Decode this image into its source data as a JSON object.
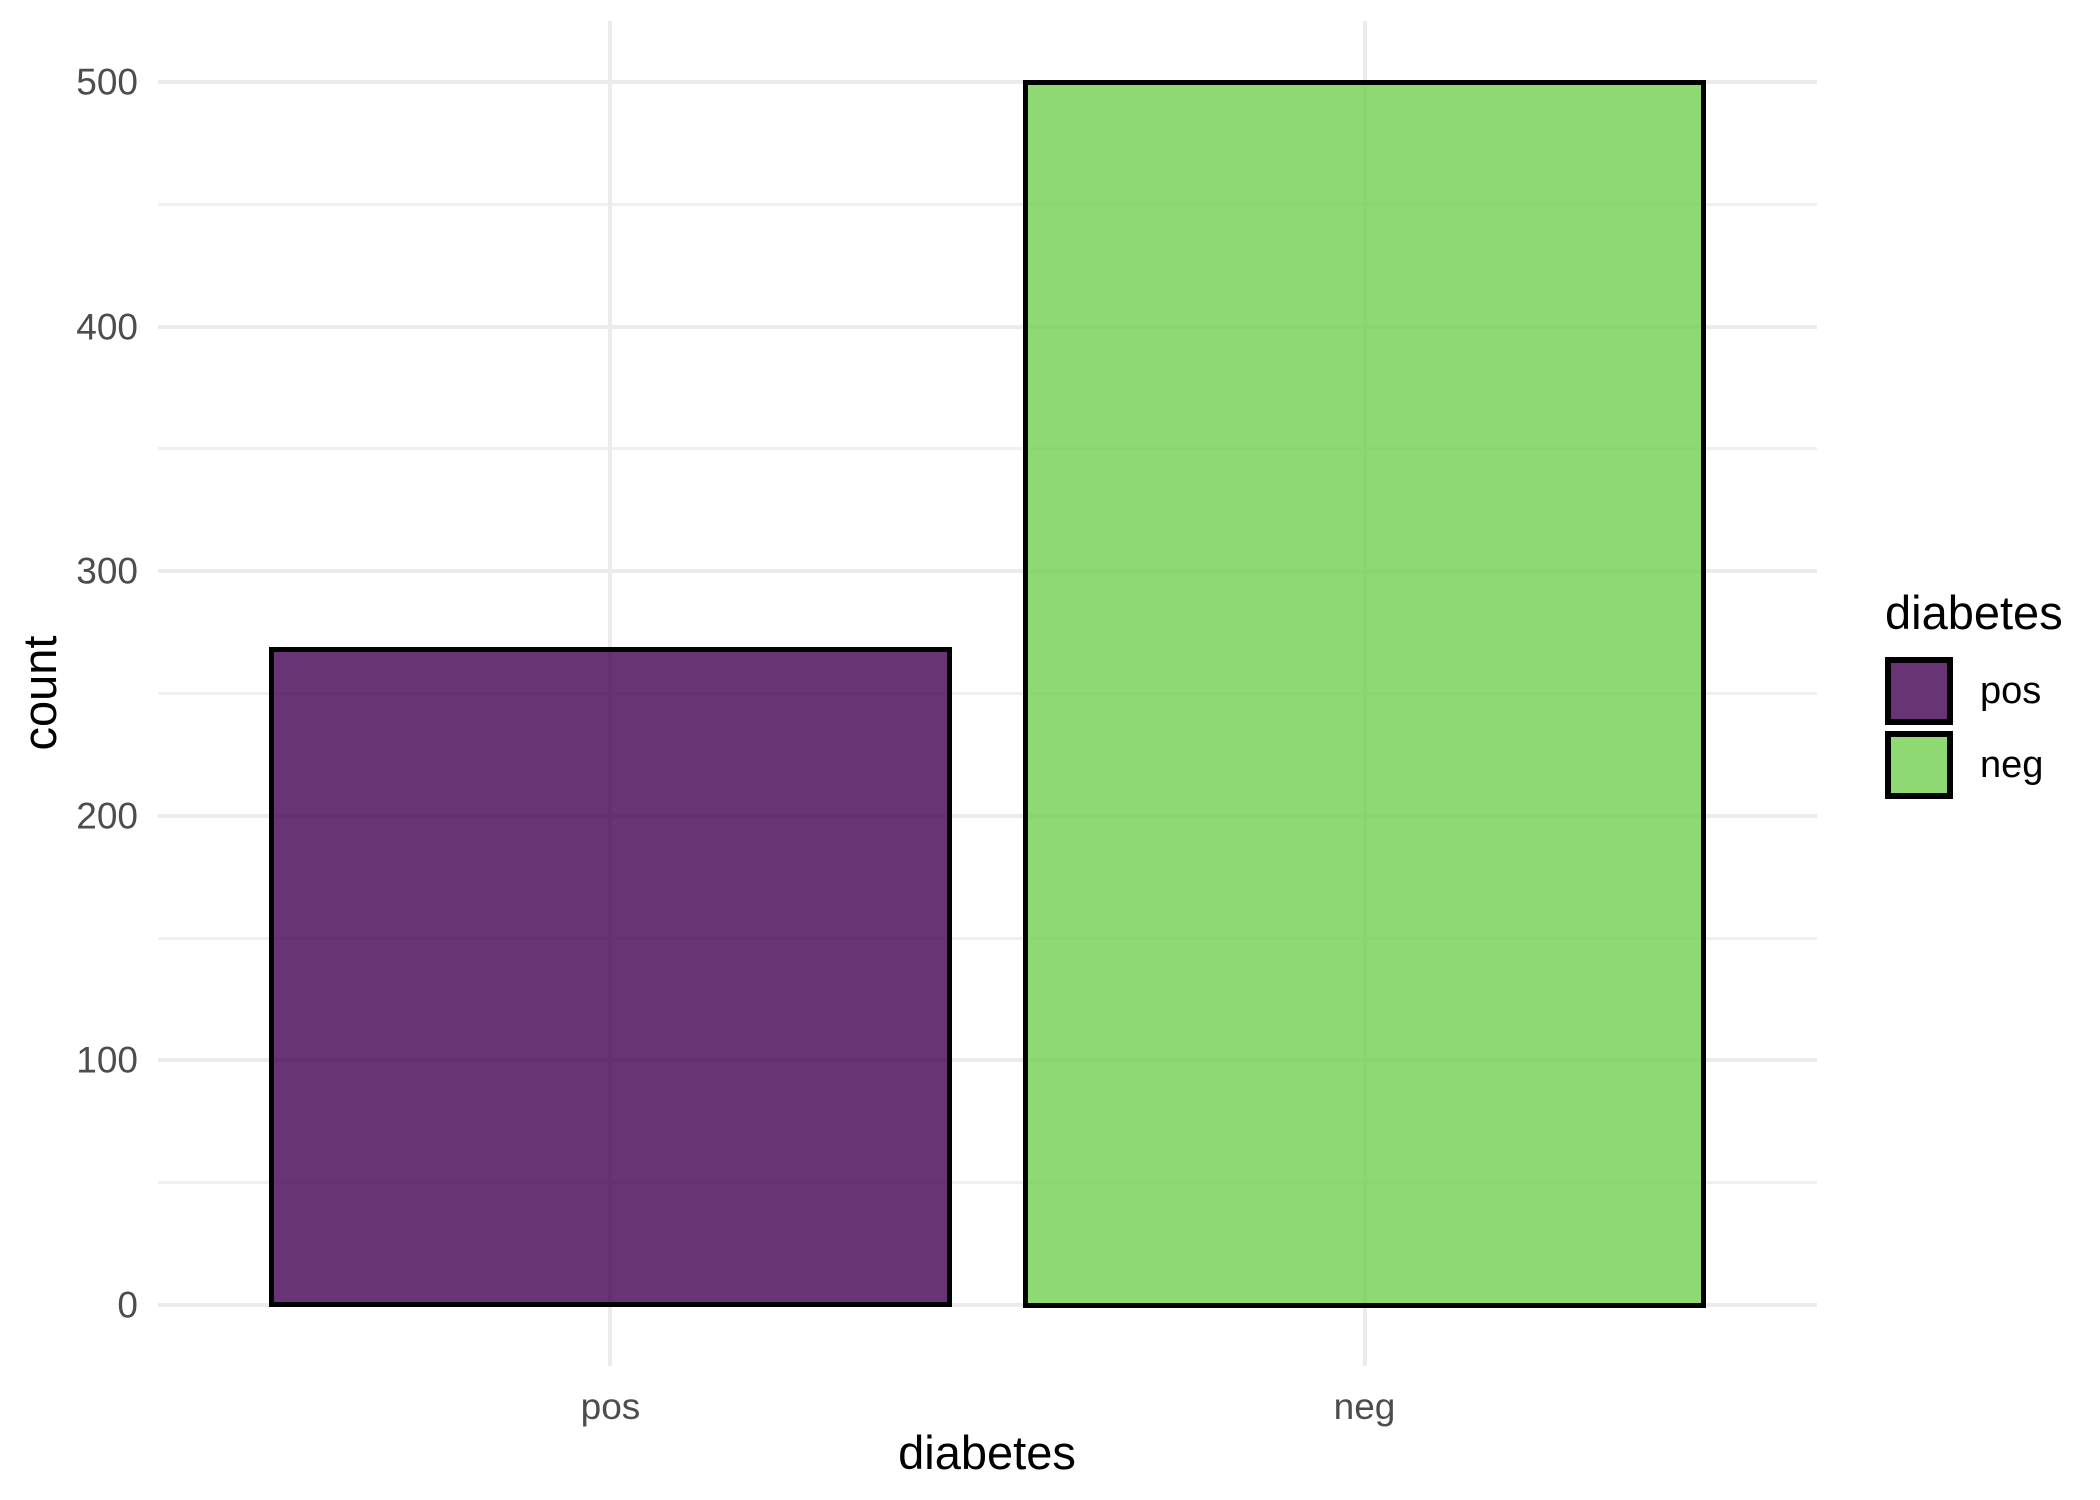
{
  "chart_data": {
    "type": "bar",
    "title": "",
    "xlabel": "diabetes",
    "ylabel": "count",
    "categories": [
      "pos",
      "neg"
    ],
    "values": [
      268,
      500
    ],
    "ylim": [
      0,
      500
    ],
    "yticks": [
      0,
      100,
      200,
      300,
      400,
      500
    ],
    "minor_gridlines": [
      50,
      150,
      250,
      350,
      450
    ],
    "grid": true,
    "legend_position": "right",
    "bar_fill_rgba": [
      "rgba(68,1,84,0.8)",
      "rgba(115,207,80,0.8)"
    ],
    "bar_fill_hex_composite": [
      "#6A3375",
      "#8FD973"
    ],
    "bar_border_color": "#000000",
    "gridline_color": "#EBEBEB",
    "tick_label_color": "#4D4D4D",
    "axis_title_color": "#000000",
    "background_color": "#FFFFFF",
    "legend": {
      "title": "diabetes",
      "entries": [
        {
          "label": "pos",
          "color": "#6A3375",
          "fill_rgba": "rgba(68,1,84,0.8)"
        },
        {
          "label": "neg",
          "color": "#8FD973",
          "fill_rgba": "rgba(115,207,80,0.8)"
        }
      ]
    }
  }
}
